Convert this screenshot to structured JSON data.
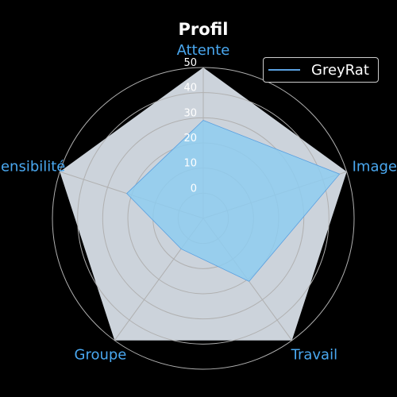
{
  "chart_data": {
    "type": "radar",
    "title": "Profil",
    "categories": [
      "Attente",
      "Image",
      "Travail",
      "Groupe",
      "Sensibilité"
    ],
    "series": [
      {
        "name": "GreyRat",
        "values": [
          29,
          47,
          21,
          5,
          22
        ]
      }
    ],
    "rlim": [
      -10,
      50
    ],
    "r_ticks": [
      0,
      10,
      20,
      30,
      40,
      50
    ],
    "grid": true,
    "legend_position": "top-right",
    "colors": {
      "background": "#000000",
      "axes_face": "#ccd3db",
      "series_line": "#5aa0e0",
      "series_fill": "#8ecdf0",
      "category_label": "#4aa8f0",
      "grid": "#b0b0b0",
      "tick_label": "#ffffff",
      "title": "#ffffff"
    }
  }
}
